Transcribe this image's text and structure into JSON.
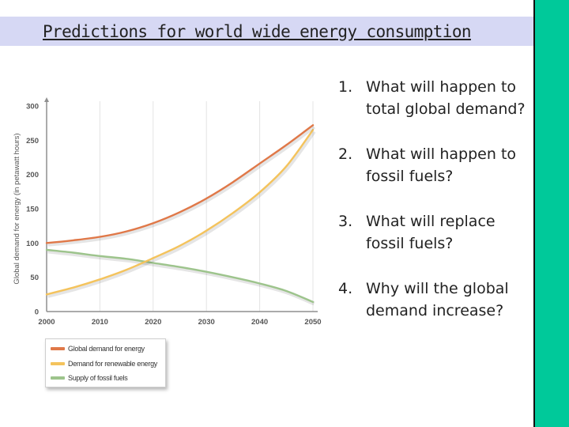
{
  "slide": {
    "title": "Predictions for world wide energy consumption"
  },
  "chart_data": {
    "type": "line",
    "title": "",
    "xlabel": "",
    "ylabel": "Global demand for energy (in petawatt hours)",
    "xlim": [
      2000,
      2050
    ],
    "ylim": [
      0,
      300
    ],
    "x_ticks": [
      2000,
      2010,
      2020,
      2030,
      2040,
      2050
    ],
    "y_ticks": [
      0,
      50,
      100,
      150,
      200,
      250,
      300
    ],
    "grid": "vertical",
    "legend_position": "bottom-left",
    "series": [
      {
        "name": "Global demand for energy",
        "color": "#e07848",
        "x": [
          2000,
          2005,
          2010,
          2015,
          2020,
          2025,
          2030,
          2035,
          2040,
          2045,
          2050
        ],
        "y": [
          100,
          104,
          109,
          117,
          129,
          145,
          165,
          189,
          216,
          243,
          272
        ]
      },
      {
        "name": "Demand for renewable energy",
        "color": "#f4c35c",
        "x": [
          2000,
          2005,
          2010,
          2015,
          2020,
          2025,
          2030,
          2035,
          2040,
          2045,
          2050
        ],
        "y": [
          25,
          35,
          47,
          61,
          78,
          96,
          118,
          144,
          174,
          212,
          265
        ]
      },
      {
        "name": "Supply of fossil fuels",
        "color": "#9dc48c",
        "x": [
          2000,
          2005,
          2010,
          2015,
          2020,
          2025,
          2030,
          2035,
          2040,
          2045,
          2050
        ],
        "y": [
          90,
          86,
          81,
          77,
          71,
          65,
          58,
          50,
          41,
          30,
          14
        ]
      }
    ]
  },
  "legend": {
    "items": [
      {
        "label": "Global demand for energy",
        "color": "#e07848"
      },
      {
        "label": "Demand for renewable energy",
        "color": "#f4c35c"
      },
      {
        "label": "Supply of fossil fuels",
        "color": "#9dc48c"
      }
    ]
  },
  "questions": [
    {
      "num": "1.",
      "text": "What will happen to total global demand?"
    },
    {
      "num": "2.",
      "text": "What will happen to fossil fuels?"
    },
    {
      "num": "3.",
      "text": "What will replace fossil fuels?"
    },
    {
      "num": "4.",
      "text": "Why will the global demand increase?"
    }
  ],
  "colors": {
    "title_band": "#d6d8f4",
    "sidebar": "#00c99a"
  }
}
